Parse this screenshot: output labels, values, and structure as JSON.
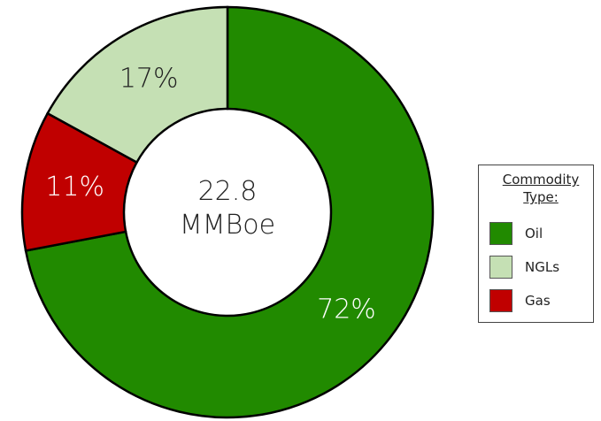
{
  "chart_data": {
    "type": "donut",
    "categories": [
      "Oil",
      "NGLs",
      "Gas"
    ],
    "values": [
      72,
      17,
      11
    ],
    "value_labels": [
      "72%",
      "17%",
      "11%"
    ],
    "colors": [
      "#218a00",
      "#c5e0b4",
      "#c00000"
    ],
    "label_colors": [
      "#ffffff",
      "#222222",
      "#ffffff"
    ],
    "center_label": "22.8 MMBoe",
    "legend_title": "Commodity Type:",
    "legend": "right"
  }
}
